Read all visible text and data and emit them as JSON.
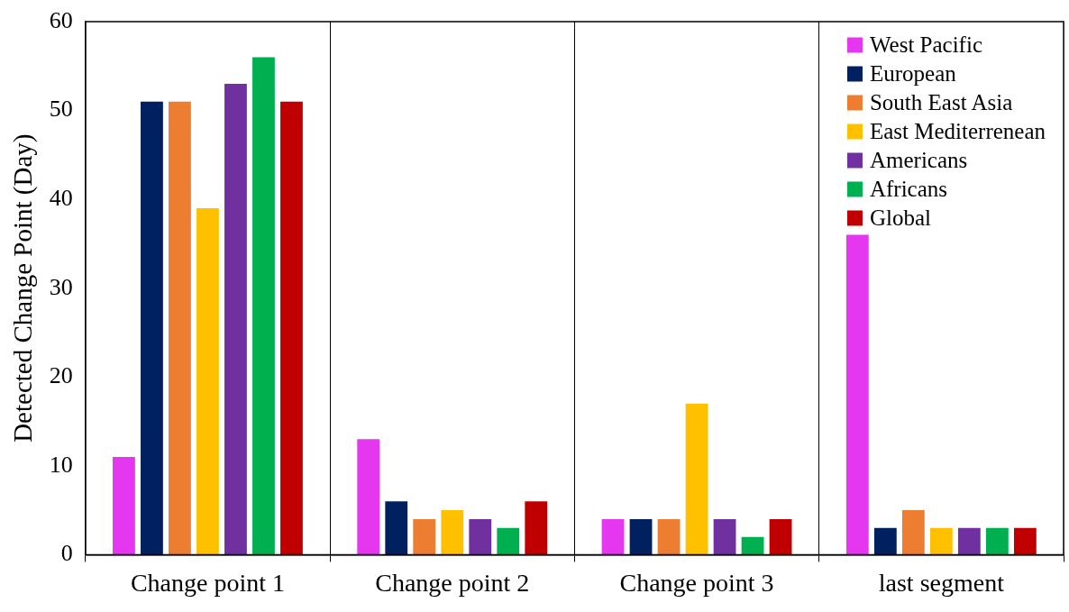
{
  "chart_data": {
    "type": "bar",
    "ylabel": "Detected Change Point (Day)",
    "categories": [
      "Change point 1",
      "Change point 2",
      "Change point 3",
      "last segment"
    ],
    "series": [
      {
        "name": "West Pacific",
        "color": "#e536f0",
        "values": [
          11,
          13,
          4,
          36
        ]
      },
      {
        "name": "European",
        "color": "#002060",
        "values": [
          51,
          6,
          4,
          3
        ]
      },
      {
        "name": "South East Asia",
        "color": "#ed7d31",
        "values": [
          51,
          4,
          4,
          5
        ]
      },
      {
        "name": "East Mediterrenean",
        "color": "#ffc000",
        "values": [
          39,
          5,
          17,
          3
        ]
      },
      {
        "name": "Americans",
        "color": "#7030a0",
        "values": [
          53,
          4,
          4,
          3
        ]
      },
      {
        "name": "Africans",
        "color": "#00b050",
        "values": [
          56,
          3,
          2,
          3
        ]
      },
      {
        "name": "Global",
        "color": "#c00000",
        "values": [
          51,
          6,
          4,
          3
        ]
      }
    ],
    "ylim": [
      0,
      60
    ],
    "yticks": [
      0,
      10,
      20,
      30,
      40,
      50,
      60
    ],
    "grid": "x",
    "legend": "top right"
  }
}
